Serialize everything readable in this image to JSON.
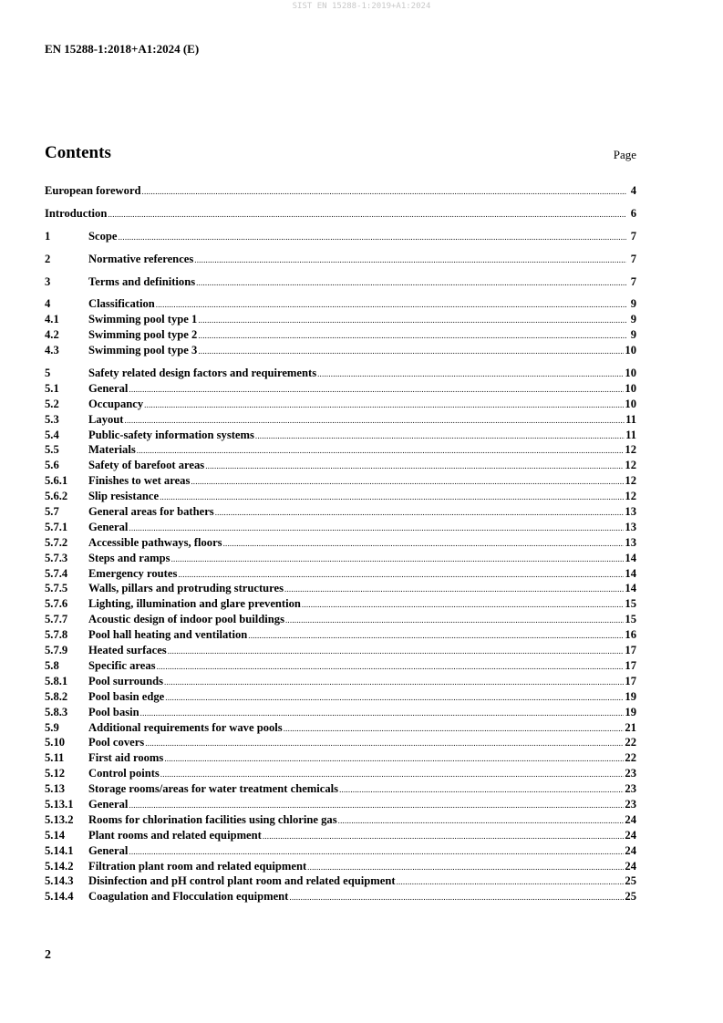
{
  "watermark": "SIST EN 15288-1:2019+A1:2024",
  "header": "EN 15288-1:2018+A1:2024 (E)",
  "title": "Contents",
  "page_label": "Page",
  "groups": [
    [
      {
        "num": "",
        "text": "European foreword",
        "page": "4"
      }
    ],
    [
      {
        "num": "",
        "text": "Introduction",
        "page": "6"
      }
    ],
    [
      {
        "num": "1",
        "text": "Scope",
        "page": "7"
      }
    ],
    [
      {
        "num": "2",
        "text": "Normative references",
        "page": "7"
      }
    ],
    [
      {
        "num": "3",
        "text": "Terms and definitions",
        "page": "7"
      }
    ],
    [
      {
        "num": "4",
        "text": "Classification",
        "page": "9"
      },
      {
        "num": "4.1",
        "text": "Swimming pool type 1",
        "page": "9"
      },
      {
        "num": "4.2",
        "text": "Swimming pool type 2",
        "page": "9"
      },
      {
        "num": "4.3",
        "text": "Swimming pool type 3",
        "page": "10"
      }
    ],
    [
      {
        "num": "5",
        "text": "Safety related design factors and requirements",
        "page": "10"
      },
      {
        "num": "5.1",
        "text": "General",
        "page": "10"
      },
      {
        "num": "5.2",
        "text": "Occupancy",
        "page": "10"
      },
      {
        "num": "5.3",
        "text": "Layout",
        "page": "11"
      },
      {
        "num": "5.4",
        "text": "Public-safety information systems",
        "page": "11"
      },
      {
        "num": "5.5",
        "text": "Materials",
        "page": "12"
      },
      {
        "num": "5.6",
        "text": "Safety of barefoot areas",
        "page": "12"
      },
      {
        "num": "5.6.1",
        "text": "Finishes to wet areas",
        "page": "12"
      },
      {
        "num": "5.6.2",
        "text": "Slip resistance",
        "page": "12"
      },
      {
        "num": "5.7",
        "text": "General areas for bathers",
        "page": "13"
      },
      {
        "num": "5.7.1",
        "text": "General",
        "page": "13"
      },
      {
        "num": "5.7.2",
        "text": "Accessible pathways, floors",
        "page": "13"
      },
      {
        "num": "5.7.3",
        "text": "Steps and ramps",
        "page": "14"
      },
      {
        "num": "5.7.4",
        "text": "Emergency routes",
        "page": "14"
      },
      {
        "num": "5.7.5",
        "text": "Walls, pillars and protruding structures",
        "page": "14"
      },
      {
        "num": "5.7.6",
        "text": "Lighting, illumination and glare prevention",
        "page": "15"
      },
      {
        "num": "5.7.7",
        "text": "Acoustic design of indoor pool buildings",
        "page": "15"
      },
      {
        "num": "5.7.8",
        "text": "Pool hall heating and ventilation",
        "page": "16"
      },
      {
        "num": "5.7.9",
        "text": "Heated surfaces",
        "page": "17"
      },
      {
        "num": "5.8",
        "text": "Specific areas",
        "page": "17"
      },
      {
        "num": "5.8.1",
        "text": "Pool surrounds",
        "page": "17"
      },
      {
        "num": "5.8.2",
        "text": "Pool basin edge",
        "page": "19"
      },
      {
        "num": "5.8.3",
        "text": "Pool basin",
        "page": "19"
      },
      {
        "num": "5.9",
        "text": "Additional requirements for wave pools",
        "page": "21"
      },
      {
        "num": "5.10",
        "text": "Pool covers",
        "page": "22"
      },
      {
        "num": "5.11",
        "text": "First aid rooms",
        "page": "22"
      },
      {
        "num": "5.12",
        "text": "Control points",
        "page": "23"
      },
      {
        "num": "5.13",
        "text": "Storage rooms/areas for water treatment chemicals",
        "page": "23"
      },
      {
        "num": "5.13.1",
        "text": "General",
        "page": "23"
      },
      {
        "num": "5.13.2",
        "text": "Rooms for chlorination facilities using chlorine gas",
        "page": "24"
      },
      {
        "num": "5.14",
        "text": "Plant rooms and related equipment",
        "page": "24"
      },
      {
        "num": "5.14.1",
        "text": "General",
        "page": "24"
      },
      {
        "num": "5.14.2",
        "text": "Filtration plant room and related equipment",
        "page": "24"
      },
      {
        "num": "5.14.3",
        "text": "Disinfection and pH control plant room and related equipment",
        "page": "25"
      },
      {
        "num": "5.14.4",
        "text": "Coagulation and Flocculation equipment",
        "page": "25"
      }
    ]
  ],
  "page_number": "2"
}
